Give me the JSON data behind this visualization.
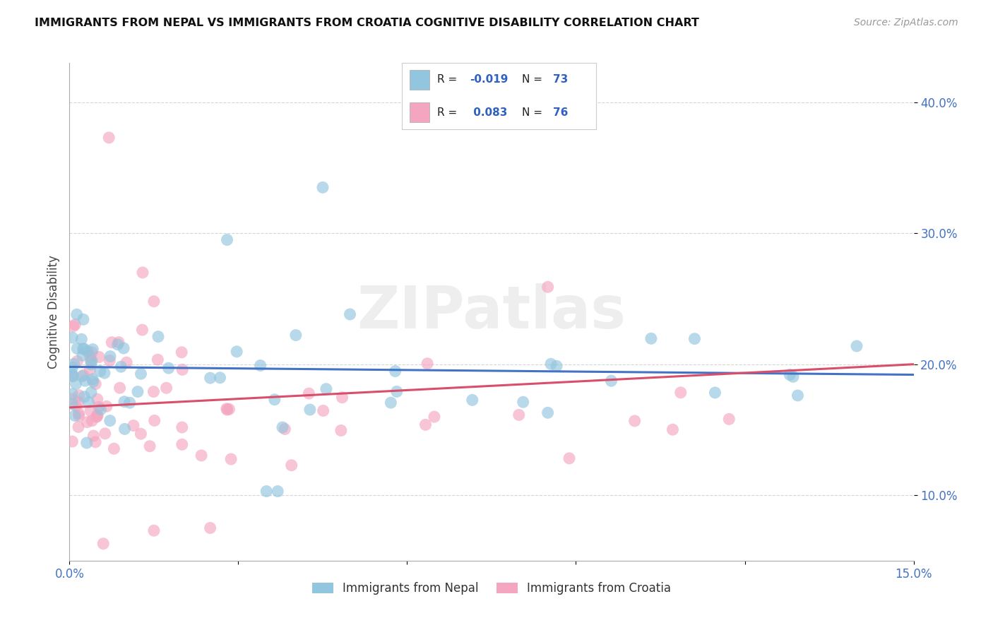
{
  "title": "IMMIGRANTS FROM NEPAL VS IMMIGRANTS FROM CROATIA COGNITIVE DISABILITY CORRELATION CHART",
  "source": "Source: ZipAtlas.com",
  "ylabel": "Cognitive Disability",
  "xlim": [
    0.0,
    0.15
  ],
  "ylim": [
    0.05,
    0.43
  ],
  "xtick_positions": [
    0.0,
    0.03,
    0.06,
    0.09,
    0.12,
    0.15
  ],
  "xtick_labels": [
    "0.0%",
    "",
    "",
    "",
    "",
    "15.0%"
  ],
  "ytick_positions": [
    0.1,
    0.2,
    0.3,
    0.4
  ],
  "ytick_labels": [
    "10.0%",
    "20.0%",
    "30.0%",
    "40.0%"
  ],
  "nepal_R": -0.019,
  "nepal_N": 73,
  "croatia_R": 0.083,
  "croatia_N": 76,
  "nepal_color": "#92C5DE",
  "croatia_color": "#F4A6C0",
  "nepal_line_color": "#4472C4",
  "croatia_line_color": "#D94F6B",
  "nepal_line_y": [
    0.198,
    0.192
  ],
  "croatia_line_y": [
    0.167,
    0.2
  ],
  "watermark": "ZIPatlas",
  "background_color": "#FFFFFF",
  "grid_color": "#CCCCCC",
  "legend_box_color": "#F0F0F0",
  "bottom_legend_labels": [
    "Immigrants from Nepal",
    "Immigrants from Croatia"
  ]
}
